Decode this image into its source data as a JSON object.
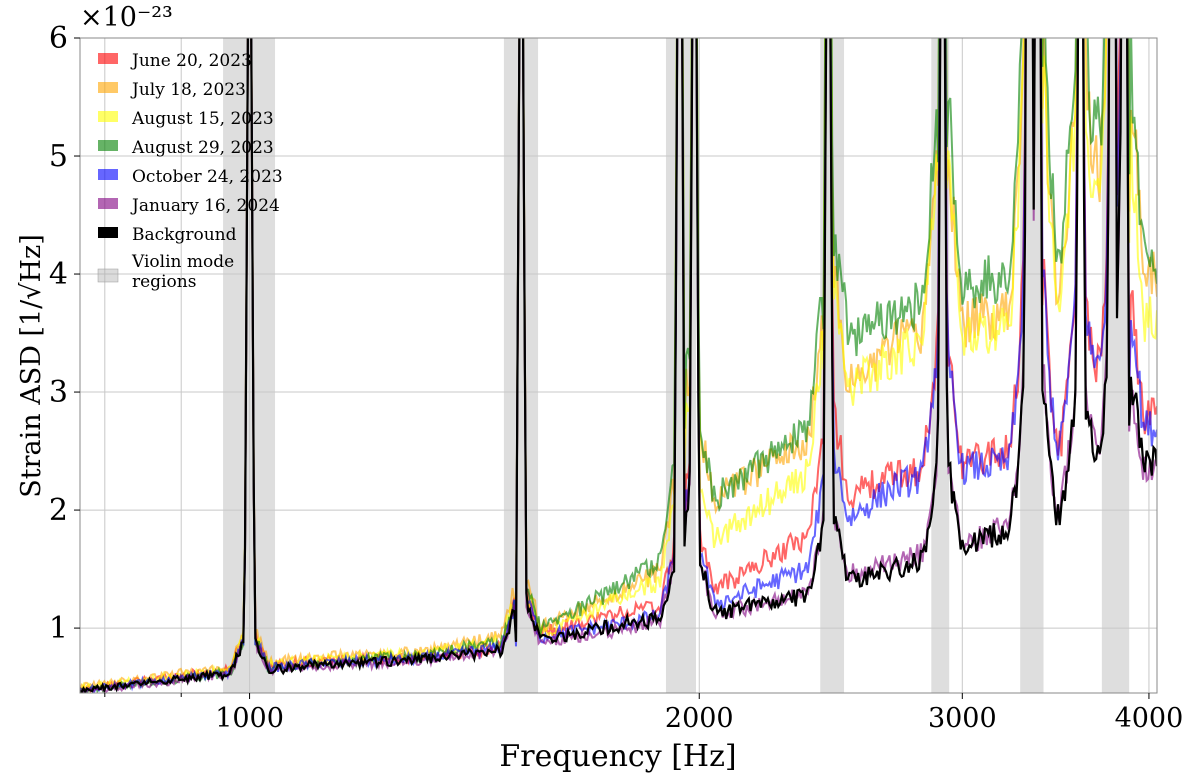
{
  "chart_data": {
    "type": "line",
    "title": "",
    "xlabel": "Frequency [Hz]",
    "ylabel": "Strain ASD [1/√Hz]",
    "y_multiplier": "×10⁻²³",
    "x_scale": "log",
    "xlim": [
      770,
      4050
    ],
    "ylim": [
      0.45,
      6
    ],
    "x_ticks": [
      1000,
      2000,
      3000,
      4000
    ],
    "x_tick_labels": [
      "1000",
      "2000",
      "3000",
      "4000"
    ],
    "y_ticks": [
      1,
      2,
      3,
      4,
      5,
      6
    ],
    "y_tick_labels": [
      "1",
      "2",
      "3",
      "4",
      "5",
      "6"
    ],
    "grid": true,
    "legend_position": "upper-left",
    "violin_regions_label": "Violin mode regions",
    "violin_regions_label_lines": [
      "Violin mode",
      "regions"
    ],
    "violin_regions": [
      [
        960,
        1040
      ],
      [
        1480,
        1560
      ],
      [
        1900,
        1990
      ],
      [
        2410,
        2500
      ],
      [
        2860,
        2940
      ],
      [
        3280,
        3400
      ],
      [
        3720,
        3880
      ]
    ],
    "spikes_hz": [
      1000,
      1520,
      1940,
      1985,
      2440,
      2910,
      3325,
      3370,
      3600,
      3780,
      3850
    ],
    "series": [
      {
        "name": "June 20,  2023",
        "color": "#ff0000",
        "alpha": 0.6,
        "points": [
          [
            770,
            0.48
          ],
          [
            900,
            0.6
          ],
          [
            1100,
            0.72
          ],
          [
            1300,
            0.75
          ],
          [
            1500,
            0.85
          ],
          [
            1600,
            1.0
          ],
          [
            1800,
            1.15
          ],
          [
            1950,
            1.2
          ],
          [
            2100,
            1.4
          ],
          [
            2300,
            1.7
          ],
          [
            2420,
            1.85
          ],
          [
            2500,
            2.1
          ],
          [
            2700,
            2.3
          ],
          [
            2850,
            2.35
          ],
          [
            3000,
            2.4
          ],
          [
            3200,
            2.5
          ],
          [
            3500,
            2.55
          ],
          [
            3800,
            2.7
          ],
          [
            4000,
            2.8
          ]
        ]
      },
      {
        "name": "July 18,  2023",
        "color": "#ffa500",
        "alpha": 0.6,
        "points": [
          [
            770,
            0.5
          ],
          [
            900,
            0.62
          ],
          [
            1100,
            0.75
          ],
          [
            1300,
            0.8
          ],
          [
            1500,
            0.95
          ],
          [
            1600,
            1.05
          ],
          [
            1800,
            1.35
          ],
          [
            1950,
            1.6
          ],
          [
            2050,
            2.1
          ],
          [
            2300,
            2.5
          ],
          [
            2420,
            2.6
          ],
          [
            2500,
            3.0
          ],
          [
            2700,
            3.4
          ],
          [
            2850,
            3.5
          ],
          [
            3000,
            3.55
          ],
          [
            3200,
            3.7
          ],
          [
            3500,
            3.85
          ],
          [
            3800,
            4.05
          ],
          [
            4000,
            4.0
          ]
        ]
      },
      {
        "name": "August 15,  2023",
        "color": "#ffff00",
        "alpha": 0.6,
        "points": [
          [
            770,
            0.49
          ],
          [
            900,
            0.6
          ],
          [
            1100,
            0.73
          ],
          [
            1300,
            0.78
          ],
          [
            1500,
            0.9
          ],
          [
            1600,
            1.0
          ],
          [
            1800,
            1.3
          ],
          [
            1950,
            1.45
          ],
          [
            2050,
            1.75
          ],
          [
            2300,
            2.2
          ],
          [
            2420,
            2.4
          ],
          [
            2500,
            3.0
          ],
          [
            2700,
            3.3
          ],
          [
            2850,
            3.45
          ],
          [
            3000,
            3.5
          ],
          [
            3200,
            3.55
          ],
          [
            3500,
            3.7
          ],
          [
            3800,
            3.8
          ],
          [
            4000,
            3.6
          ]
        ]
      },
      {
        "name": "August 29,  2023",
        "color": "#008000",
        "alpha": 0.6,
        "points": [
          [
            770,
            0.47
          ],
          [
            900,
            0.57
          ],
          [
            1100,
            0.7
          ],
          [
            1300,
            0.77
          ],
          [
            1500,
            0.9
          ],
          [
            1600,
            1.05
          ],
          [
            1800,
            1.4
          ],
          [
            1950,
            1.75
          ],
          [
            2050,
            2.1
          ],
          [
            2300,
            2.6
          ],
          [
            2420,
            2.7
          ],
          [
            2500,
            3.4
          ],
          [
            2700,
            3.7
          ],
          [
            2850,
            3.8
          ],
          [
            3000,
            3.9
          ],
          [
            3200,
            4.0
          ],
          [
            3500,
            4.1
          ],
          [
            3800,
            4.3
          ],
          [
            4000,
            4.1
          ]
        ]
      },
      {
        "name": "October 24,  2023",
        "color": "#0000ff",
        "alpha": 0.6,
        "points": [
          [
            770,
            0.47
          ],
          [
            900,
            0.58
          ],
          [
            1100,
            0.7
          ],
          [
            1300,
            0.74
          ],
          [
            1500,
            0.85
          ],
          [
            1600,
            0.95
          ],
          [
            1800,
            1.05
          ],
          [
            1950,
            1.15
          ],
          [
            2100,
            1.25
          ],
          [
            2300,
            1.45
          ],
          [
            2420,
            1.55
          ],
          [
            2500,
            1.9
          ],
          [
            2700,
            2.2
          ],
          [
            2850,
            2.3
          ],
          [
            3000,
            2.35
          ],
          [
            3200,
            2.4
          ],
          [
            3500,
            2.55
          ],
          [
            3800,
            2.7
          ],
          [
            4000,
            2.7
          ]
        ]
      },
      {
        "name": "January 16,  2024",
        "color": "#800080",
        "alpha": 0.6,
        "points": [
          [
            770,
            0.46
          ],
          [
            900,
            0.56
          ],
          [
            1100,
            0.68
          ],
          [
            1300,
            0.72
          ],
          [
            1500,
            0.82
          ],
          [
            1600,
            0.9
          ],
          [
            1800,
            1.0
          ],
          [
            1950,
            1.1
          ],
          [
            2100,
            1.15
          ],
          [
            2300,
            1.25
          ],
          [
            2420,
            1.3
          ],
          [
            2500,
            1.45
          ],
          [
            2700,
            1.55
          ],
          [
            2850,
            1.65
          ],
          [
            3000,
            1.7
          ],
          [
            3200,
            1.85
          ],
          [
            3500,
            2.0
          ],
          [
            3800,
            2.15
          ],
          [
            4000,
            2.35
          ]
        ]
      },
      {
        "name": "Background",
        "color": "#000000",
        "alpha": 1.0,
        "points": [
          [
            770,
            0.47
          ],
          [
            900,
            0.57
          ],
          [
            1100,
            0.68
          ],
          [
            1300,
            0.73
          ],
          [
            1500,
            0.82
          ],
          [
            1600,
            0.92
          ],
          [
            1800,
            1.05
          ],
          [
            1950,
            1.08
          ],
          [
            2100,
            1.15
          ],
          [
            2300,
            1.25
          ],
          [
            2420,
            1.3
          ],
          [
            2500,
            1.4
          ],
          [
            2700,
            1.5
          ],
          [
            2850,
            1.6
          ],
          [
            3000,
            1.7
          ],
          [
            3200,
            1.82
          ],
          [
            3500,
            1.95
          ],
          [
            3800,
            2.15
          ],
          [
            4000,
            2.4
          ]
        ]
      }
    ]
  }
}
